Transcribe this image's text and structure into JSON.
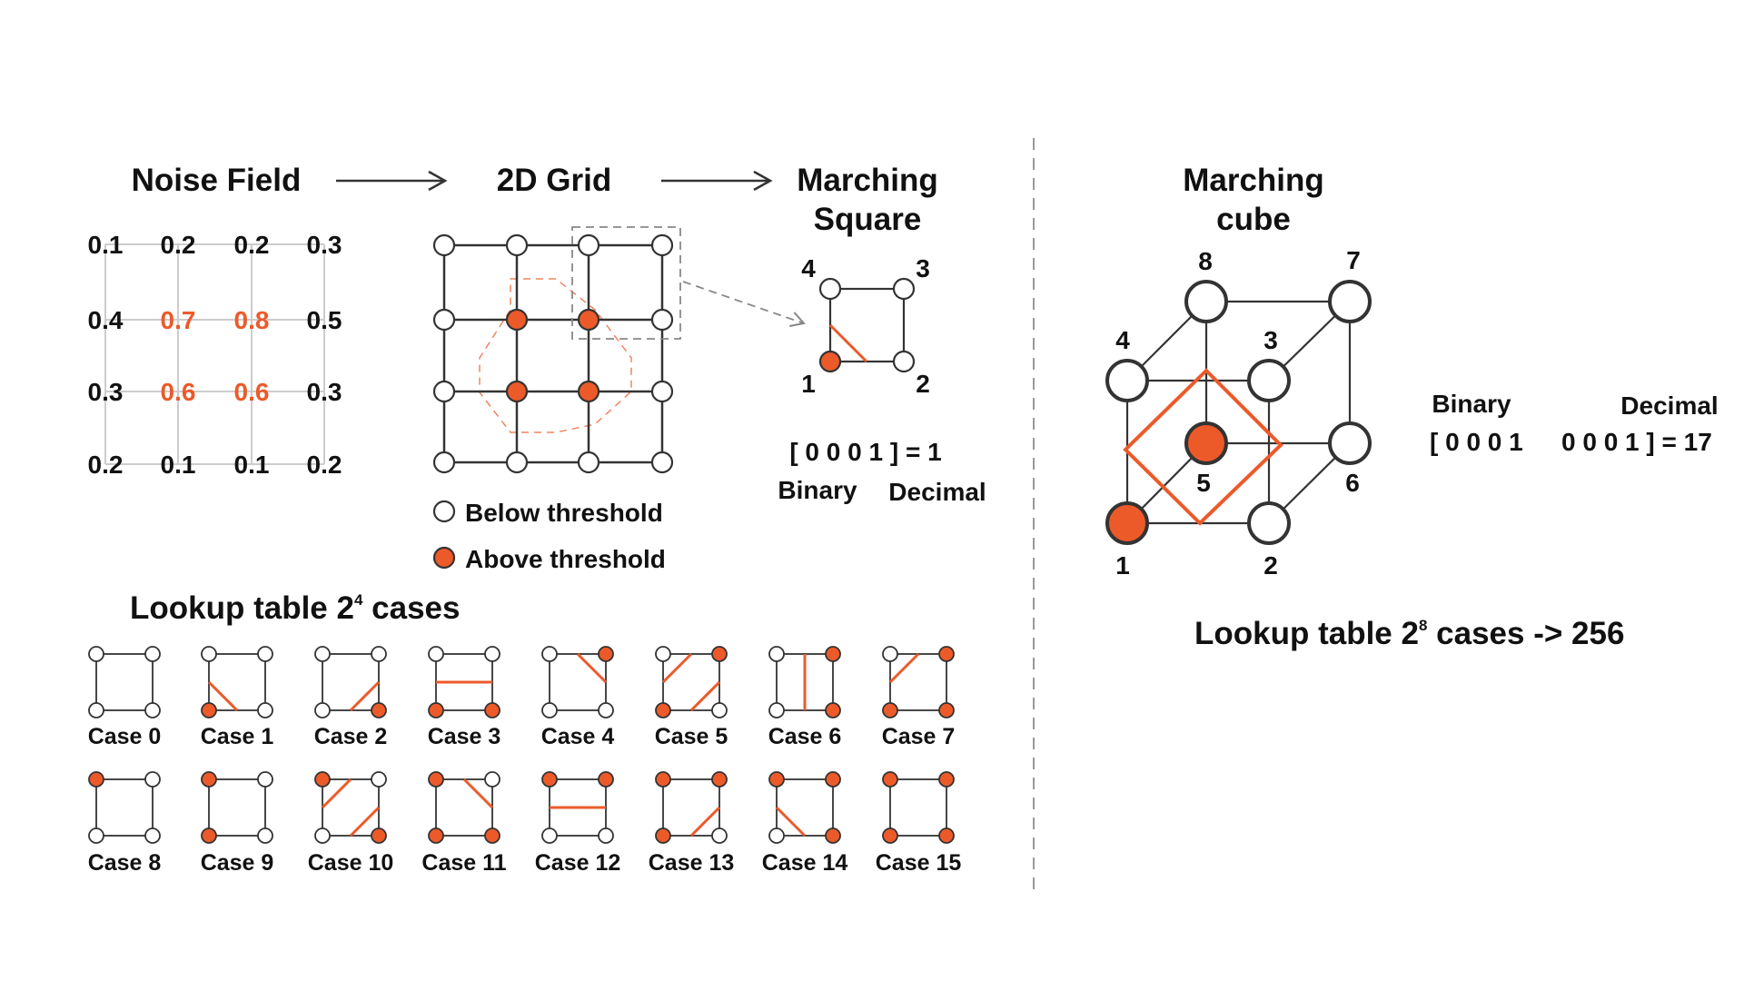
{
  "colors": {
    "accent": "#ec5a2a",
    "ink": "#333333",
    "grid_light": "#cccccc",
    "divider": "#999999"
  },
  "noise_field": {
    "title": "Noise Field",
    "rows": [
      [
        "0.1",
        "0.2",
        "0.2",
        "0.3"
      ],
      [
        "0.4",
        "0.7",
        "0.8",
        "0.5"
      ],
      [
        "0.3",
        "0.6",
        "0.6",
        "0.3"
      ],
      [
        "0.2",
        "0.1",
        "0.1",
        "0.2"
      ]
    ],
    "highlighted_cells": [
      [
        1,
        1
      ],
      [
        1,
        2
      ],
      [
        2,
        1
      ],
      [
        2,
        2
      ]
    ]
  },
  "grid2d": {
    "title": "2D Grid",
    "active_nodes": [
      [
        1,
        1
      ],
      [
        1,
        2
      ],
      [
        2,
        1
      ],
      [
        2,
        2
      ]
    ],
    "legend": {
      "below": "Below threshold",
      "above": "Above threshold"
    }
  },
  "marching_square": {
    "title_line1": "Marching",
    "title_line2": "Square",
    "corner_labels": {
      "tl": "4",
      "tr": "3",
      "bl": "1",
      "br": "2"
    },
    "formula": "[ 0 0 0 1 ] = 1",
    "binary_label": "Binary",
    "decimal_label": "Decimal"
  },
  "lookup_2d": {
    "title_prefix": "Lookup table 2",
    "title_exp": "4",
    "title_suffix": " cases",
    "cases": [
      {
        "label": "Case 0"
      },
      {
        "label": "Case 1"
      },
      {
        "label": "Case 2"
      },
      {
        "label": "Case 3"
      },
      {
        "label": "Case 4"
      },
      {
        "label": "Case 5"
      },
      {
        "label": "Case 6"
      },
      {
        "label": "Case 7"
      },
      {
        "label": "Case 8"
      },
      {
        "label": "Case 9"
      },
      {
        "label": "Case 10"
      },
      {
        "label": "Case 11"
      },
      {
        "label": "Case 12"
      },
      {
        "label": "Case 13"
      },
      {
        "label": "Case 14"
      },
      {
        "label": "Case 15"
      }
    ]
  },
  "marching_cube": {
    "title_line1": "Marching",
    "title_line2": "cube",
    "vertex_labels": [
      "1",
      "2",
      "3",
      "4",
      "5",
      "6",
      "7",
      "8"
    ],
    "active_vertices": [
      "1",
      "5"
    ],
    "binary_label": "Binary",
    "decimal_label": "Decimal",
    "binary_value": "[ 0 0 0 1",
    "decimal_value": "0 0 0 1 ] = 17"
  },
  "lookup_3d": {
    "title_prefix": "Lookup table 2",
    "title_exp": "8",
    "title_suffix": " cases -> 256"
  }
}
